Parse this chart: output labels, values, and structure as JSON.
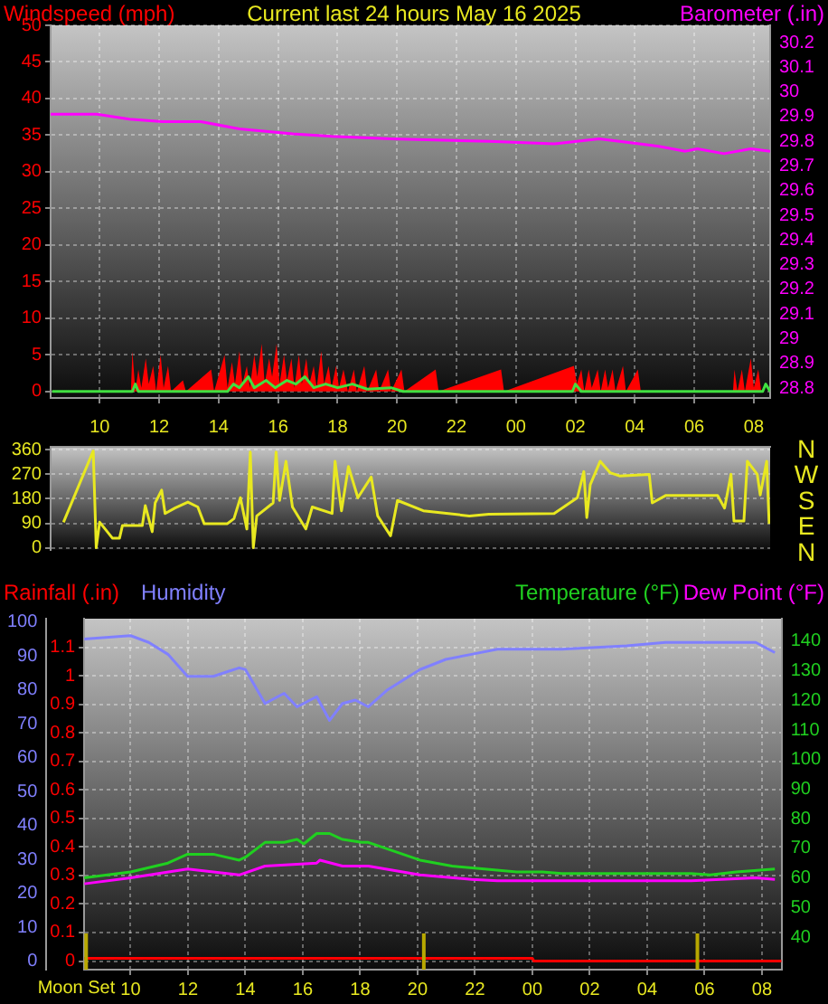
{
  "chart_data": [
    {
      "type": "line",
      "title": "Current last 24 hours May 16 2025",
      "xlim": [
        "2025-05-15T08:21",
        "2025-05-16T08:33"
      ],
      "xticks": [
        "2025-05-15T10:00",
        "2025-05-15T12:00",
        "2025-05-15T14:00",
        "2025-05-15T16:00",
        "2025-05-15T18:00",
        "2025-05-15T20:00",
        "2025-05-15T22:00",
        "2025-05-16T00:00",
        "2025-05-16T02:00",
        "2025-05-16T04:00",
        "2025-05-16T06:00",
        "2025-05-16T08:00"
      ],
      "tick_labels": "y",
      "ylim": [
        -0.9,
        50
      ],
      "yticks": [
        0,
        5,
        10,
        15,
        20,
        25,
        30,
        35,
        40,
        45,
        50
      ],
      "y2lim": [
        28.76,
        30.27
      ],
      "y2ticks": [
        28.8,
        28.9,
        29,
        29.1,
        29.2,
        29.3,
        29.4,
        29.5,
        29.6,
        29.7,
        29.8,
        29.9,
        30,
        30.1,
        30.2
      ],
      "grid": true,
      "legend": "top",
      "marker": "none",
      "series": [
        {
          "name": "Windspeed (mph)",
          "type": "area",
          "color": "#ff0000",
          "x": [
            "2025-05-15T08:24",
            "2025-05-15T11:03",
            "2025-05-15T11:06",
            "2025-05-15T11:12",
            "2025-05-15T11:18",
            "2025-05-15T11:24",
            "2025-05-15T11:33",
            "2025-05-15T11:39",
            "2025-05-15T11:48",
            "2025-05-15T11:54",
            "2025-05-15T12:03",
            "2025-05-15T12:09",
            "2025-05-15T12:18",
            "2025-05-15T12:24",
            "2025-05-15T12:48",
            "2025-05-15T12:54",
            "2025-05-15T13:45",
            "2025-05-15T13:51",
            "2025-05-15T14:12",
            "2025-05-15T14:18",
            "2025-05-15T14:27",
            "2025-05-15T14:33",
            "2025-05-15T14:42",
            "2025-05-15T14:48",
            "2025-05-15T14:57",
            "2025-05-15T15:03",
            "2025-05-15T15:12",
            "2025-05-15T15:18",
            "2025-05-15T15:27",
            "2025-05-15T15:33",
            "2025-05-15T15:42",
            "2025-05-15T15:48",
            "2025-05-15T15:57",
            "2025-05-15T16:03",
            "2025-05-15T16:12",
            "2025-05-15T16:18",
            "2025-05-15T16:27",
            "2025-05-15T16:33",
            "2025-05-15T16:42",
            "2025-05-15T16:48",
            "2025-05-15T16:57",
            "2025-05-15T17:03",
            "2025-05-15T17:12",
            "2025-05-15T17:18",
            "2025-05-15T17:27",
            "2025-05-15T17:33",
            "2025-05-15T17:42",
            "2025-05-15T17:48",
            "2025-05-15T17:57",
            "2025-05-15T18:03",
            "2025-05-15T18:12",
            "2025-05-15T18:21",
            "2025-05-15T18:33",
            "2025-05-15T18:39",
            "2025-05-15T18:54",
            "2025-05-15T19:00",
            "2025-05-15T19:18",
            "2025-05-15T19:24",
            "2025-05-15T19:42",
            "2025-05-15T19:48",
            "2025-05-15T20:09",
            "2025-05-15T20:15",
            "2025-05-15T21:18",
            "2025-05-15T21:24",
            "2025-05-15T23:30",
            "2025-05-15T23:36",
            "2025-05-16T01:57",
            "2025-05-16T02:03",
            "2025-05-16T02:12",
            "2025-05-16T02:18",
            "2025-05-16T02:27",
            "2025-05-16T02:33",
            "2025-05-16T02:45",
            "2025-05-16T02:51",
            "2025-05-16T03:00",
            "2025-05-16T03:06",
            "2025-05-16T03:15",
            "2025-05-16T03:21",
            "2025-05-16T03:36",
            "2025-05-16T03:42",
            "2025-05-16T04:06",
            "2025-05-16T04:12",
            "2025-05-16T07:18",
            "2025-05-16T07:21",
            "2025-05-16T07:27",
            "2025-05-16T07:36",
            "2025-05-16T07:42",
            "2025-05-16T07:54",
            "2025-05-16T08:00",
            "2025-05-16T08:09",
            "2025-05-16T08:15",
            "2025-05-16T08:33"
          ],
          "values": [
            0,
            0,
            5.5,
            0,
            3,
            0.5,
            4.5,
            1,
            3.5,
            0,
            5,
            0.5,
            3.5,
            0,
            1.5,
            0,
            3,
            0,
            5,
            0.5,
            4,
            1,
            5.5,
            1,
            3.5,
            0.5,
            5,
            2,
            6.5,
            1,
            4.5,
            2,
            6.5,
            1,
            5,
            1.5,
            4.5,
            0.5,
            5,
            1,
            4.5,
            1,
            3.5,
            0.5,
            5.5,
            1,
            3.5,
            0.5,
            3.5,
            0.5,
            3,
            0,
            3,
            0,
            3.5,
            0,
            3,
            0,
            3,
            0,
            3,
            0,
            3,
            0,
            3,
            0,
            3.5,
            1,
            3,
            0,
            3,
            0.5,
            3,
            0,
            3,
            0.5,
            3,
            0,
            3.5,
            0,
            3,
            0,
            0,
            3,
            0,
            3,
            0,
            4.5,
            0.5,
            3,
            0,
            0
          ]
        },
        {
          "color": "#40e040",
          "x": [
            "2025-05-15T08:24",
            "2025-05-15T11:06",
            "2025-05-15T11:12",
            "2025-05-15T11:18",
            "2025-05-15T14:18",
            "2025-05-15T14:30",
            "2025-05-15T14:42",
            "2025-05-15T15:00",
            "2025-05-15T15:12",
            "2025-05-15T15:36",
            "2025-05-15T15:54",
            "2025-05-15T16:18",
            "2025-05-15T16:36",
            "2025-05-15T16:54",
            "2025-05-15T17:12",
            "2025-05-15T17:36",
            "2025-05-15T18:00",
            "2025-05-15T18:30",
            "2025-05-15T19:00",
            "2025-05-15T19:48",
            "2025-05-15T20:12",
            "2025-05-16T01:54",
            "2025-05-16T02:00",
            "2025-05-16T02:12",
            "2025-05-16T08:18",
            "2025-05-16T08:24",
            "2025-05-16T08:33"
          ],
          "values": [
            0,
            0,
            1,
            0,
            0,
            1,
            0.5,
            2,
            0.5,
            1.5,
            0.5,
            1.5,
            1,
            2,
            0.5,
            1,
            0.5,
            1,
            0.3,
            0.5,
            0,
            0,
            1,
            0,
            0,
            1,
            0
          ]
        },
        {
          "name": "Barometer (.in)",
          "axis": "y2",
          "color": "#ff00ff",
          "x": [
            "2025-05-15T08:21",
            "2025-05-15T09:54",
            "2025-05-15T11:00",
            "2025-05-15T12:06",
            "2025-05-15T13:24",
            "2025-05-15T14:42",
            "2025-05-15T16:30",
            "2025-05-15T17:48",
            "2025-05-15T19:48",
            "2025-05-15T23:06",
            "2025-05-16T01:18",
            "2025-05-16T02:48",
            "2025-05-16T04:09",
            "2025-05-16T04:48",
            "2025-05-16T05:42",
            "2025-05-16T06:06",
            "2025-05-16T07:00",
            "2025-05-16T07:54",
            "2025-05-16T08:33"
          ],
          "values": [
            29.91,
            29.91,
            29.89,
            29.88,
            29.88,
            29.85,
            29.83,
            29.82,
            29.81,
            29.8,
            29.79,
            29.81,
            29.79,
            29.78,
            29.76,
            29.77,
            29.75,
            29.77,
            29.76
          ]
        }
      ]
    },
    {
      "type": "line",
      "xlim": [
        "2025-05-15T08:21",
        "2025-05-16T08:33"
      ],
      "xticks": [
        {
          "value": "2025-05-15T10:00",
          "label": "10"
        },
        {
          "value": "2025-05-15T12:00",
          "label": "12"
        },
        {
          "value": "2025-05-15T14:00",
          "label": "14"
        },
        {
          "value": "2025-05-15T16:00",
          "label": "16"
        },
        {
          "value": "2025-05-15T18:00",
          "label": "18"
        },
        {
          "value": "2025-05-15T20:00",
          "label": "20"
        },
        {
          "value": "2025-05-15T22:00",
          "label": "22"
        },
        {
          "value": "2025-05-16T00:00",
          "label": "00"
        },
        {
          "value": "2025-05-16T02:00",
          "label": "02"
        },
        {
          "value": "2025-05-16T04:00",
          "label": "04"
        },
        {
          "value": "2025-05-16T06:00",
          "label": "06"
        },
        {
          "value": "2025-05-16T08:00",
          "label": "08"
        }
      ],
      "ylim": [
        -8,
        371
      ],
      "yticks": [
        0,
        90,
        180,
        270,
        360
      ],
      "grid": "y",
      "marker": "none",
      "annotations": [
        "N",
        "W",
        "S",
        "E",
        "N"
      ],
      "series": [
        {
          "color": "#e8e820",
          "x": [
            "2025-05-15T08:47",
            "2025-05-15T09:47",
            "2025-05-15T09:53",
            "2025-05-15T10:00",
            "2025-05-15T10:26",
            "2025-05-15T10:40",
            "2025-05-15T10:46",
            "2025-05-15T11:26",
            "2025-05-15T11:32",
            "2025-05-15T11:46",
            "2025-05-15T11:52",
            "2025-05-15T12:05",
            "2025-05-15T12:12",
            "2025-05-15T12:32",
            "2025-05-15T12:58",
            "2025-05-15T13:18",
            "2025-05-15T13:31",
            "2025-05-15T14:17",
            "2025-05-15T14:31",
            "2025-05-15T14:44",
            "2025-05-15T14:57",
            "2025-05-15T15:04",
            "2025-05-15T15:10",
            "2025-05-15T15:17",
            "2025-05-15T15:50",
            "2025-05-15T15:56",
            "2025-05-15T16:03",
            "2025-05-15T16:16",
            "2025-05-15T16:29",
            "2025-05-15T16:56",
            "2025-05-15T17:09",
            "2025-05-15T17:49",
            "2025-05-15T17:55",
            "2025-05-15T18:08",
            "2025-05-15T18:22",
            "2025-05-15T18:41",
            "2025-05-15T19:08",
            "2025-05-15T19:21",
            "2025-05-15T19:47",
            "2025-05-15T20:01",
            "2025-05-15T20:53",
            "2025-05-15T22:26",
            "2025-05-15T23:05",
            "2025-05-16T01:17",
            "2025-05-16T02:04",
            "2025-05-16T02:17",
            "2025-05-16T02:23",
            "2025-05-16T02:30",
            "2025-05-16T02:50",
            "2025-05-16T03:10",
            "2025-05-16T03:29",
            "2025-05-16T04:29",
            "2025-05-16T04:35",
            "2025-05-16T05:02",
            "2025-05-16T06:47",
            "2025-05-16T07:01",
            "2025-05-16T07:14",
            "2025-05-16T07:20",
            "2025-05-16T07:40",
            "2025-05-16T07:47",
            "2025-05-16T08:07",
            "2025-05-16T08:13",
            "2025-05-16T08:26",
            "2025-05-16T08:31"
          ],
          "values": [
            94,
            356,
            0,
            94,
            35,
            35,
            82,
            82,
            155,
            59,
            165,
            212,
            126,
            146,
            168,
            150,
            88,
            88,
            107,
            184,
            69,
            352,
            0,
            117,
            165,
            352,
            174,
            318,
            150,
            69,
            150,
            126,
            318,
            136,
            299,
            184,
            260,
            117,
            44,
            174,
            136,
            117,
            123,
            126,
            184,
            280,
            111,
            232,
            318,
            276,
            264,
            270,
            165,
            192,
            192,
            146,
            270,
            98,
            98,
            318,
            270,
            194,
            318,
            88
          ]
        }
      ]
    },
    {
      "type": "line",
      "xlim": [
        "2025-05-15T08:23",
        "2025-05-16T08:41"
      ],
      "xticks": [
        {
          "value": "2025-05-15T10:00",
          "label": "10"
        },
        {
          "value": "2025-05-15T12:00",
          "label": "12"
        },
        {
          "value": "2025-05-15T14:00",
          "label": "14"
        },
        {
          "value": "2025-05-15T16:00",
          "label": "16"
        },
        {
          "value": "2025-05-15T18:00",
          "label": "18"
        },
        {
          "value": "2025-05-15T20:00",
          "label": "20"
        },
        {
          "value": "2025-05-15T22:00",
          "label": "22"
        },
        {
          "value": "2025-05-16T00:00",
          "label": "00"
        },
        {
          "value": "2025-05-16T02:00",
          "label": "02"
        },
        {
          "value": "2025-05-16T04:00",
          "label": "04"
        },
        {
          "value": "2025-05-16T06:00",
          "label": "06"
        },
        {
          "value": "2025-05-16T08:00",
          "label": "08"
        }
      ],
      "ylim": [
        -0.03,
        1.2
      ],
      "yticks": [
        0,
        0.1,
        0.2,
        0.3,
        0.4,
        0.5,
        0.6,
        0.7,
        0.8,
        0.9,
        1,
        1.1
      ],
      "y3lim": [
        -2.5,
        101
      ],
      "y3ticks": [
        0,
        10,
        20,
        30,
        40,
        50,
        60,
        70,
        80,
        90,
        100
      ],
      "y2lim": [
        29,
        147.6
      ],
      "y2ticks": [
        40,
        50,
        60,
        70,
        80,
        90,
        100,
        110,
        120,
        130,
        140
      ],
      "grid": true,
      "legend": "top",
      "marker": "none",
      "ref_lines": [
        {
          "axis": "x",
          "value": "2025-05-15T08:27",
          "label": "Moon Set",
          "color": "#b8a800"
        },
        {
          "axis": "x",
          "value": "2025-05-15T20:13",
          "color": "#b8a800"
        },
        {
          "axis": "x",
          "value": "2025-05-16T05:45",
          "color": "#b8a800"
        }
      ],
      "series": [
        {
          "name": "Rainfall (.in)",
          "color": "#ff0000",
          "x": [
            "2025-05-15T08:23",
            "2025-05-16T00:00",
            "2025-05-16T00:03",
            "2025-05-16T08:41"
          ],
          "values": [
            0.01,
            0.01,
            0,
            0
          ]
        },
        {
          "name": "Humidity",
          "axis": "y3",
          "color": "#8080ff",
          "x": [
            "2025-05-15T08:23",
            "2025-05-15T10:00",
            "2025-05-15T10:38",
            "2025-05-15T11:18",
            "2025-05-15T11:59",
            "2025-05-15T12:53",
            "2025-05-15T13:47",
            "2025-05-15T14:00",
            "2025-05-15T14:41",
            "2025-05-15T15:21",
            "2025-05-15T15:48",
            "2025-05-15T16:29",
            "2025-05-15T16:56",
            "2025-05-15T17:23",
            "2025-05-15T17:50",
            "2025-05-15T18:17",
            "2025-05-15T18:57",
            "2025-05-15T20:05",
            "2025-05-15T20:59",
            "2025-05-15T21:53",
            "2025-05-15T22:47",
            "2025-05-16T01:02",
            "2025-05-16T03:17",
            "2025-05-16T04:38",
            "2025-05-16T07:47",
            "2025-05-16T08:27"
          ],
          "values": [
            95,
            96,
            94,
            90.5,
            84,
            84,
            86.5,
            86,
            76,
            79,
            75,
            78,
            71,
            76,
            77,
            75,
            80,
            86,
            89,
            90.5,
            92,
            92,
            93,
            94,
            94,
            91
          ]
        },
        {
          "name": "Temperature (°F)",
          "axis": "y2",
          "color": "#20d020",
          "x": [
            "2025-05-15T08:23",
            "2025-05-15T10:00",
            "2025-05-15T11:18",
            "2025-05-15T11:59",
            "2025-05-15T12:53",
            "2025-05-15T13:47",
            "2025-05-15T14:00",
            "2025-05-15T14:41",
            "2025-05-15T15:21",
            "2025-05-15T15:48",
            "2025-05-15T16:02",
            "2025-05-15T16:29",
            "2025-05-15T16:56",
            "2025-05-15T17:23",
            "2025-05-15T18:03",
            "2025-05-15T18:17",
            "2025-05-15T19:11",
            "2025-05-15T20:05",
            "2025-05-15T21:12",
            "2025-05-15T22:20",
            "2025-05-15T23:27",
            "2025-05-16T00:21",
            "2025-05-16T01:02",
            "2025-05-16T05:32",
            "2025-05-16T06:12",
            "2025-05-16T07:06",
            "2025-05-16T08:27"
          ],
          "values": [
            60,
            62,
            65,
            68,
            68,
            66,
            67,
            72,
            72,
            73,
            71.5,
            75,
            75,
            73,
            72,
            72,
            69,
            66,
            64,
            63,
            62,
            62,
            61.5,
            61.5,
            61,
            62,
            63
          ]
        },
        {
          "name": "Dew Point (°F)",
          "axis": "y2",
          "color": "#ff00ff",
          "x": [
            "2025-05-15T08:23",
            "2025-05-15T10:00",
            "2025-05-15T11:59",
            "2025-05-15T13:47",
            "2025-05-15T14:41",
            "2025-05-15T16:29",
            "2025-05-15T16:36",
            "2025-05-15T17:23",
            "2025-05-15T18:17",
            "2025-05-15T20:05",
            "2025-05-15T21:53",
            "2025-05-15T22:47",
            "2025-05-16T01:02",
            "2025-05-16T05:32",
            "2025-05-16T07:47",
            "2025-05-16T08:27"
          ],
          "values": [
            58,
            60,
            63,
            61,
            64,
            65,
            66,
            64,
            64,
            61,
            59.5,
            59,
            59,
            59,
            60,
            59.5
          ]
        }
      ]
    }
  ]
}
